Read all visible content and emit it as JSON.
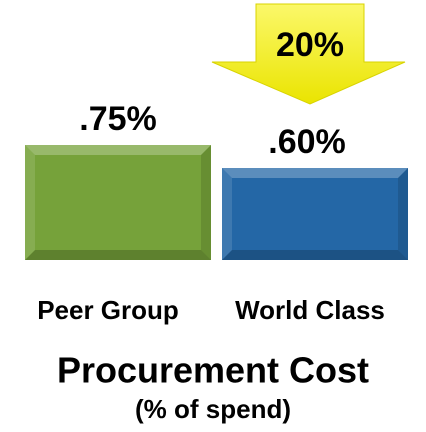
{
  "chart_data": {
    "type": "bar",
    "title": "Procurement Cost",
    "subtitle": "(% of spend)",
    "categories": [
      "Peer Group",
      "World Class"
    ],
    "values": [
      0.75,
      0.6
    ],
    "value_labels": [
      ".75%",
      ".60%"
    ],
    "colors": [
      "#76a23a",
      "#2467a6"
    ],
    "annotation": "20%",
    "annotation_color": "#f2ee00"
  }
}
